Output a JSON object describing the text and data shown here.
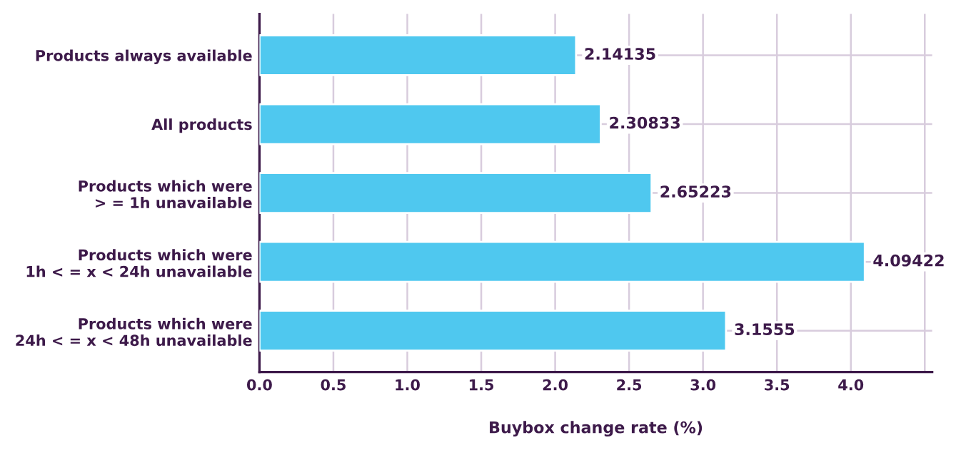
{
  "chart_data": {
    "type": "bar",
    "orientation": "horizontal",
    "xlabel": "Buybox change rate (%)",
    "categories": [
      "Products always available",
      "All products",
      "Products which were\n> = 1h unavailable",
      "Products which were\n1h < = x < 24h unavailable",
      "Products which were\n24h < = x < 48h unavailable"
    ],
    "values": [
      2.14135,
      2.30833,
      2.65223,
      4.09422,
      3.1555
    ],
    "color": "#4fc8ef",
    "xlim": [
      0,
      4.55
    ],
    "xticks": [
      {
        "value": 0,
        "label": "0.0"
      },
      0.5,
      {
        "value": 1,
        "label": "1.0"
      },
      1.5,
      {
        "value": 2,
        "label": "2.0"
      },
      2.5,
      {
        "value": 3,
        "label": "3.0"
      },
      3.5,
      {
        "value": 4,
        "label": "4.0"
      },
      {
        "value": 4.5,
        "label": null
      }
    ],
    "data_labels": true,
    "grid": true,
    "legend": false
  }
}
